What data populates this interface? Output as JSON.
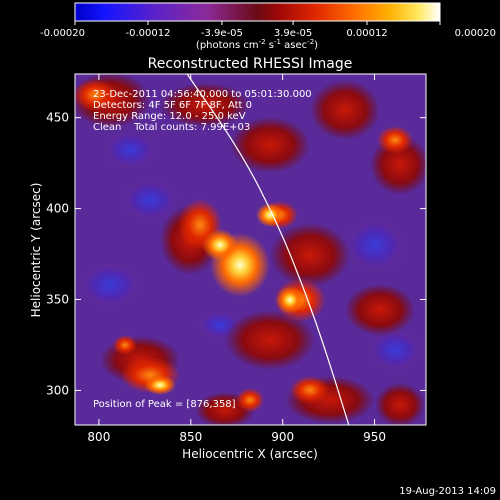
{
  "colorbar": {
    "tick_labels": [
      "-0.00020",
      "-0.00012",
      "-3.9e-05",
      "3.9e-05",
      "0.00012",
      "0.00020"
    ],
    "tick_values": [
      -0.0002,
      -0.00012,
      -3.9e-05,
      3.9e-05,
      0.00012,
      0.0002
    ],
    "units_main": "(photons cm",
    "units_exp1": "-2",
    "units_mid": " s",
    "units_exp2": "-1",
    "units_tail": " asec",
    "units_exp3": "-2",
    "units_close": ")"
  },
  "chart_data": {
    "type": "heatmap",
    "title": "Reconstructed RHESSI Image",
    "xlabel": "Heliocentric X (arcsec)",
    "ylabel": "Heliocentric Y (arcsec)",
    "xlim": [
      787,
      978
    ],
    "ylim": [
      281,
      474
    ],
    "x_ticks": [
      800,
      850,
      900,
      950
    ],
    "y_ticks": [
      300,
      350,
      400,
      450
    ],
    "value_range": [
      -0.0002,
      0.0002
    ],
    "limb_curve": {
      "points": [
        [
          848,
          474
        ],
        [
          878,
          430
        ],
        [
          898,
          390
        ],
        [
          912,
          355
        ],
        [
          924,
          320
        ],
        [
          936,
          281
        ]
      ]
    },
    "peak": [
      876,
      358
    ],
    "annotations": [
      "23-Dec-2011 04:56:40.000 to 05:01:30.000",
      "Detectors: 4F 5F 6F 7F 8F, Att 0",
      "Energy Range: 12.0 - 25.0 keV",
      "Clean    Total counts: 7.99E+03"
    ],
    "peak_label": "Position of Peak = [876,358]"
  },
  "footer": {
    "timestamp": "19-Aug-2013 14:09"
  }
}
